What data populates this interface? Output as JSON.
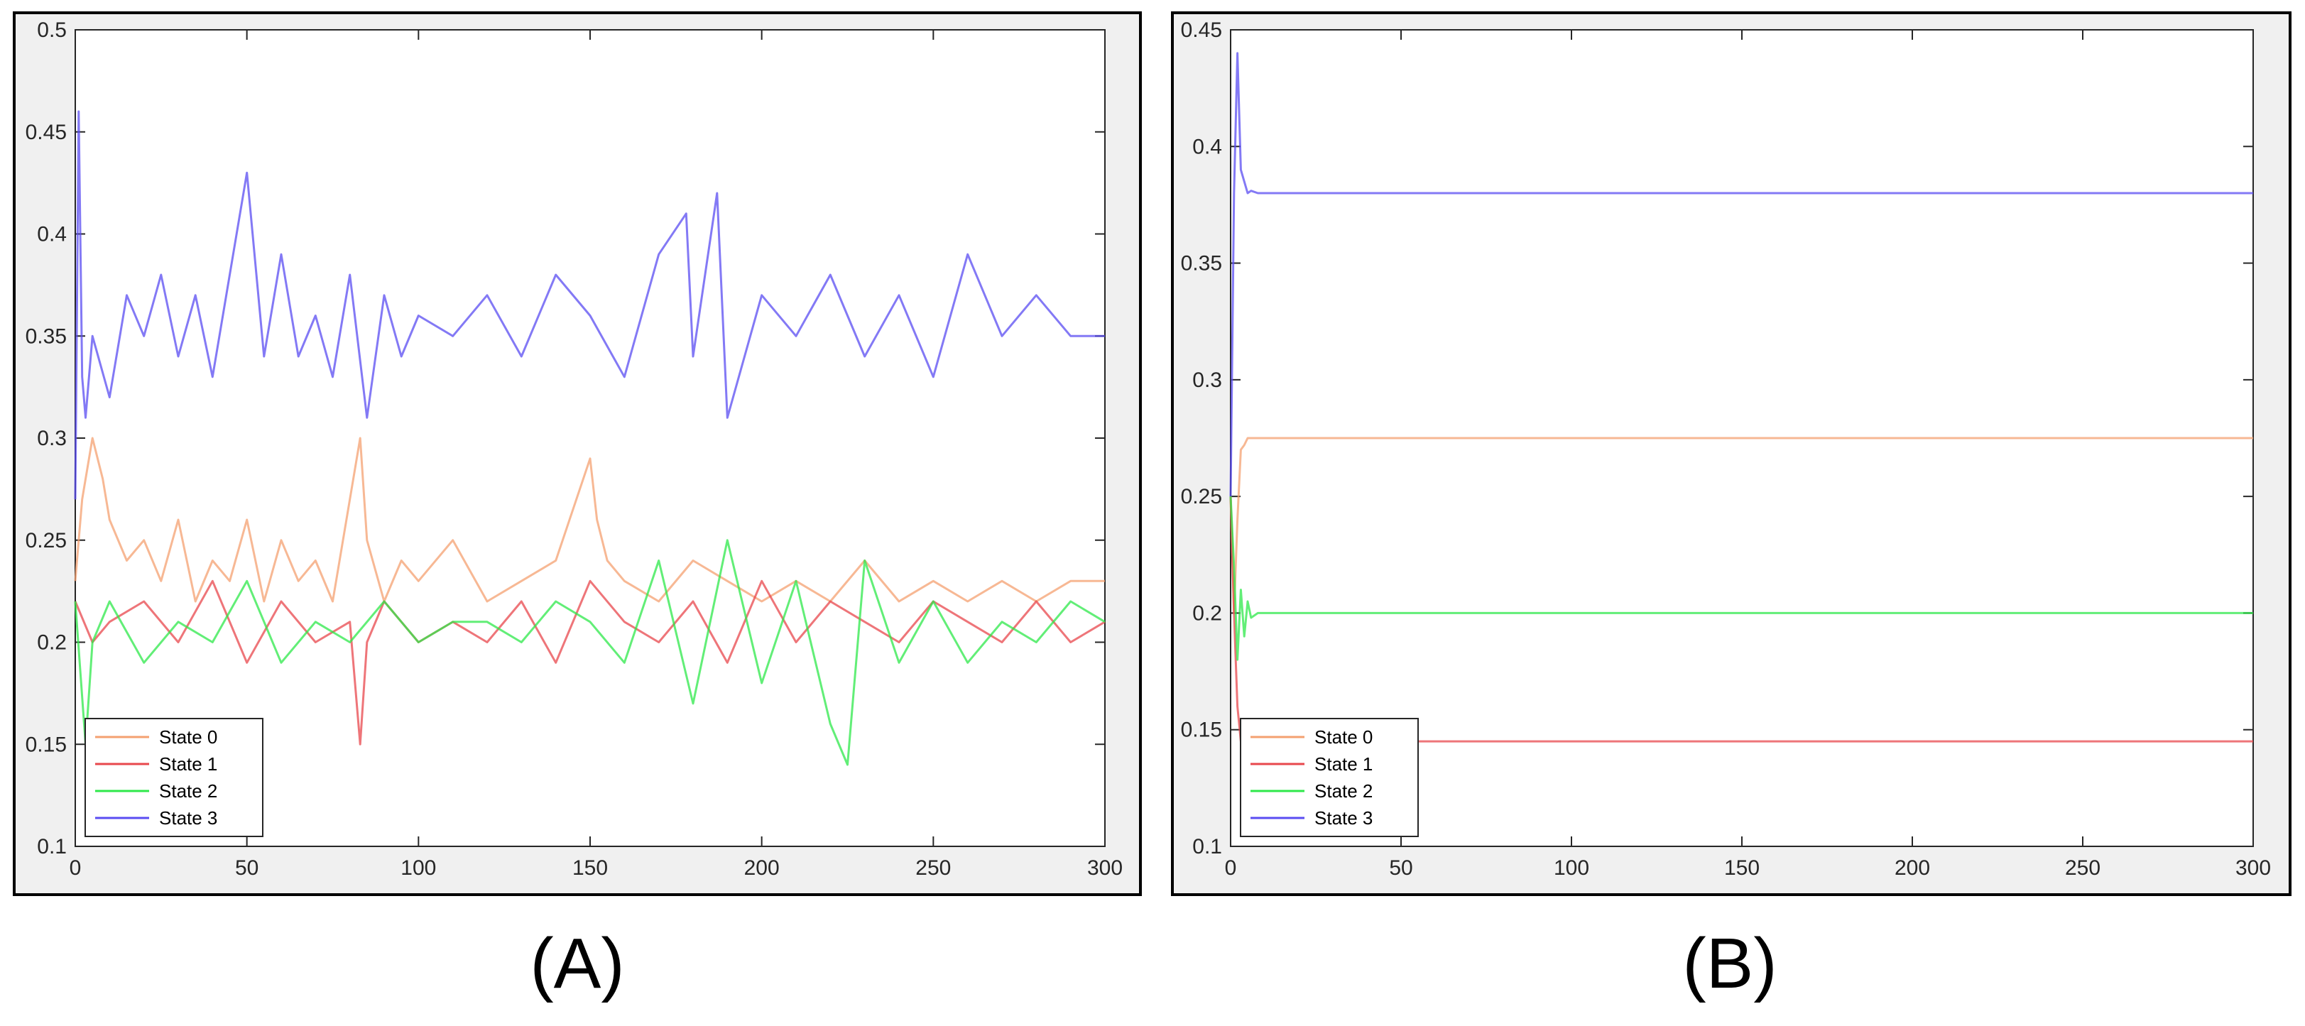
{
  "colors": {
    "state0": "#f4a070",
    "state1": "#e8474c",
    "state2": "#2ee84a",
    "state3": "#5a4cf2",
    "axes_bg": "#ffffff",
    "figure_bg": "#f0f0f0"
  },
  "chart_data": [
    {
      "panel_label": "(A)",
      "type": "line",
      "xlim": [
        0,
        300
      ],
      "ylim": [
        0.1,
        0.5
      ],
      "xticks": [
        0,
        50,
        100,
        150,
        200,
        250,
        300
      ],
      "yticks": [
        0.1,
        0.15,
        0.2,
        0.25,
        0.3,
        0.35,
        0.4,
        0.45,
        0.5
      ],
      "ytick_labels": [
        "0.1",
        "0.15",
        "0.2",
        "0.25",
        "0.3",
        "0.35",
        "0.4",
        "0.45",
        "0.5"
      ],
      "legend_position": "bottom-left",
      "grid": false,
      "series": [
        {
          "name": "State 0",
          "color_key": "state0",
          "x": [
            0,
            2,
            5,
            8,
            10,
            15,
            20,
            25,
            30,
            35,
            40,
            45,
            50,
            55,
            60,
            65,
            70,
            75,
            80,
            83,
            85,
            90,
            95,
            100,
            110,
            120,
            130,
            140,
            150,
            152,
            155,
            160,
            170,
            180,
            190,
            200,
            210,
            220,
            230,
            240,
            250,
            260,
            270,
            280,
            290,
            300
          ],
          "y": [
            0.23,
            0.27,
            0.3,
            0.28,
            0.26,
            0.24,
            0.25,
            0.23,
            0.26,
            0.22,
            0.24,
            0.23,
            0.26,
            0.22,
            0.25,
            0.23,
            0.24,
            0.22,
            0.27,
            0.3,
            0.25,
            0.22,
            0.24,
            0.23,
            0.25,
            0.22,
            0.23,
            0.24,
            0.29,
            0.26,
            0.24,
            0.23,
            0.22,
            0.24,
            0.23,
            0.22,
            0.23,
            0.22,
            0.24,
            0.22,
            0.23,
            0.22,
            0.23,
            0.22,
            0.23,
            0.23
          ]
        },
        {
          "name": "State 1",
          "color_key": "state1",
          "x": [
            0,
            5,
            10,
            20,
            30,
            40,
            50,
            60,
            70,
            80,
            83,
            85,
            90,
            100,
            110,
            120,
            130,
            140,
            150,
            160,
            170,
            180,
            190,
            200,
            210,
            220,
            230,
            240,
            250,
            260,
            270,
            280,
            290,
            300
          ],
          "y": [
            0.22,
            0.2,
            0.21,
            0.22,
            0.2,
            0.23,
            0.19,
            0.22,
            0.2,
            0.21,
            0.15,
            0.2,
            0.22,
            0.2,
            0.21,
            0.2,
            0.22,
            0.19,
            0.23,
            0.21,
            0.2,
            0.22,
            0.19,
            0.23,
            0.2,
            0.22,
            0.21,
            0.2,
            0.22,
            0.21,
            0.2,
            0.22,
            0.2,
            0.21
          ]
        },
        {
          "name": "State 2",
          "color_key": "state2",
          "x": [
            0,
            3,
            5,
            10,
            20,
            30,
            40,
            50,
            60,
            70,
            80,
            90,
            100,
            110,
            120,
            130,
            140,
            150,
            160,
            170,
            180,
            190,
            200,
            210,
            220,
            225,
            230,
            240,
            250,
            260,
            270,
            280,
            290,
            300
          ],
          "y": [
            0.22,
            0.15,
            0.2,
            0.22,
            0.19,
            0.21,
            0.2,
            0.23,
            0.19,
            0.21,
            0.2,
            0.22,
            0.2,
            0.21,
            0.21,
            0.2,
            0.22,
            0.21,
            0.19,
            0.24,
            0.17,
            0.25,
            0.18,
            0.23,
            0.16,
            0.14,
            0.24,
            0.19,
            0.22,
            0.19,
            0.21,
            0.2,
            0.22,
            0.21
          ]
        },
        {
          "name": "State 3",
          "color_key": "state3",
          "x": [
            0,
            1,
            2,
            3,
            5,
            10,
            15,
            20,
            25,
            30,
            35,
            40,
            45,
            50,
            55,
            60,
            65,
            70,
            75,
            80,
            85,
            90,
            95,
            100,
            110,
            120,
            130,
            140,
            150,
            160,
            170,
            178,
            180,
            187,
            190,
            200,
            210,
            220,
            230,
            240,
            250,
            260,
            270,
            280,
            290,
            300
          ],
          "y": [
            0.27,
            0.46,
            0.33,
            0.31,
            0.35,
            0.32,
            0.37,
            0.35,
            0.38,
            0.34,
            0.37,
            0.33,
            0.38,
            0.43,
            0.34,
            0.39,
            0.34,
            0.36,
            0.33,
            0.38,
            0.31,
            0.37,
            0.34,
            0.36,
            0.35,
            0.37,
            0.34,
            0.38,
            0.36,
            0.33,
            0.39,
            0.41,
            0.34,
            0.42,
            0.31,
            0.37,
            0.35,
            0.38,
            0.34,
            0.37,
            0.33,
            0.39,
            0.35,
            0.37,
            0.35,
            0.35
          ]
        }
      ]
    },
    {
      "panel_label": "(B)",
      "type": "line",
      "xlim": [
        0,
        300
      ],
      "ylim": [
        0.1,
        0.45
      ],
      "xticks": [
        0,
        50,
        100,
        150,
        200,
        250,
        300
      ],
      "yticks": [
        0.1,
        0.15,
        0.2,
        0.25,
        0.3,
        0.35,
        0.4,
        0.45
      ],
      "ytick_labels": [
        "0.1",
        "0.15",
        "0.2",
        "0.25",
        "0.3",
        "0.35",
        "0.4",
        "0.45"
      ],
      "legend_position": "bottom-left",
      "grid": false,
      "series": [
        {
          "name": "State 0",
          "color_key": "state0",
          "x": [
            0,
            1,
            2,
            3,
            4,
            5,
            8,
            300
          ],
          "y": [
            0.25,
            0.2,
            0.24,
            0.27,
            0.272,
            0.275,
            0.275,
            0.275
          ]
        },
        {
          "name": "State 1",
          "color_key": "state1",
          "x": [
            0,
            1,
            2,
            3,
            4,
            5,
            8,
            300
          ],
          "y": [
            0.25,
            0.2,
            0.16,
            0.145,
            0.146,
            0.145,
            0.145,
            0.145
          ]
        },
        {
          "name": "State 2",
          "color_key": "state2",
          "x": [
            0,
            1,
            2,
            3,
            4,
            5,
            6,
            8,
            300
          ],
          "y": [
            0.25,
            0.22,
            0.18,
            0.21,
            0.19,
            0.205,
            0.198,
            0.2,
            0.2
          ]
        },
        {
          "name": "State 3",
          "color_key": "state3",
          "x": [
            0,
            1,
            2,
            3,
            4,
            5,
            6,
            8,
            300
          ],
          "y": [
            0.25,
            0.38,
            0.44,
            0.39,
            0.385,
            0.38,
            0.381,
            0.38,
            0.38
          ]
        }
      ]
    }
  ]
}
